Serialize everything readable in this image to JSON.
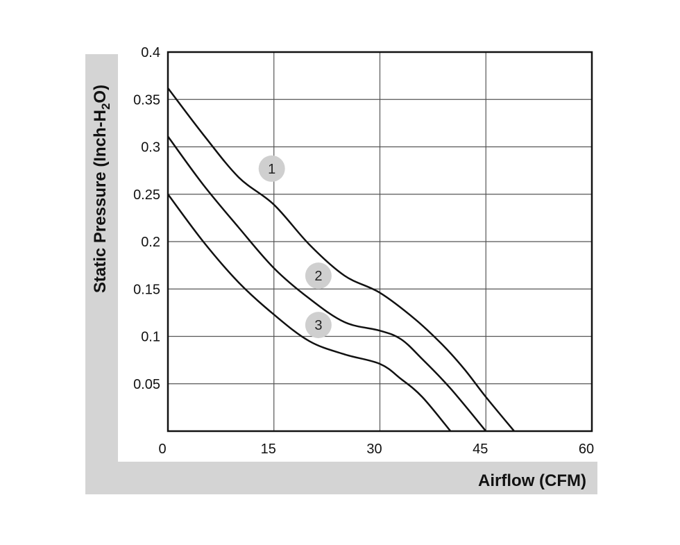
{
  "chart_data": {
    "type": "line",
    "xlabel": "Airflow (CFM)",
    "ylabel_main": "Static Pressure (Inch-H",
    "ylabel_sub": "2",
    "ylabel_end": "O)",
    "xlim": [
      0,
      60
    ],
    "ylim": [
      0,
      0.4
    ],
    "x_ticks": [
      "0",
      "15",
      "30",
      "45",
      "60"
    ],
    "y_ticks": [
      "0.4",
      "0.35",
      "0.3",
      "0.25",
      "0.2",
      "0.15",
      "0.1",
      "0.05"
    ],
    "grid": true,
    "series": [
      {
        "callout": "1",
        "callout_at": [
          14.7,
          0.277
        ],
        "points": [
          [
            0,
            0.362
          ],
          [
            5,
            0.313
          ],
          [
            10,
            0.268
          ],
          [
            15,
            0.239
          ],
          [
            20,
            0.197
          ],
          [
            25,
            0.164
          ],
          [
            30,
            0.146
          ],
          [
            35,
            0.118
          ],
          [
            39,
            0.09
          ],
          [
            42,
            0.065
          ],
          [
            45,
            0.036
          ],
          [
            49,
            0
          ]
        ]
      },
      {
        "callout": "2",
        "callout_at": [
          21.3,
          0.164
        ],
        "points": [
          [
            0,
            0.311
          ],
          [
            5,
            0.26
          ],
          [
            10,
            0.215
          ],
          [
            15,
            0.172
          ],
          [
            20,
            0.14
          ],
          [
            25,
            0.115
          ],
          [
            30,
            0.106
          ],
          [
            33,
            0.097
          ],
          [
            36,
            0.076
          ],
          [
            40,
            0.045
          ],
          [
            45,
            0
          ]
        ]
      },
      {
        "callout": "3",
        "callout_at": [
          21.3,
          0.112
        ],
        "points": [
          [
            0,
            0.25
          ],
          [
            5,
            0.2
          ],
          [
            10,
            0.157
          ],
          [
            15,
            0.123
          ],
          [
            20,
            0.095
          ],
          [
            25,
            0.081
          ],
          [
            30,
            0.071
          ],
          [
            33,
            0.055
          ],
          [
            36,
            0.036
          ],
          [
            40,
            0
          ]
        ]
      }
    ]
  }
}
